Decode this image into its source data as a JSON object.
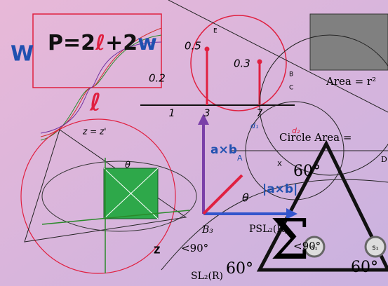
{
  "formula": {
    "w_big": "W",
    "parts": [
      "P=2",
      "ℓ",
      "+2",
      "w"
    ],
    "ell": "ℓ"
  },
  "plot": {
    "values": [
      "0.5",
      "0.3",
      "0.2"
    ],
    "axis": [
      "1",
      "3",
      "7"
    ]
  },
  "geometry": {
    "area_square": "Area = r²",
    "circle_area": "Circle Area =",
    "z_eq": "z = z'",
    "theta": "θ",
    "cross": "a×b",
    "cross_abs": "|a×b|",
    "angle60": "60°",
    "angle90": "<90°",
    "psl": "PSL₂(R)",
    "sl": "SL₂(R)",
    "braid": "B₃",
    "sigma": "Σ",
    "node": "s₁",
    "points": [
      "A",
      "B",
      "C",
      "D",
      "E",
      "X",
      "Z"
    ],
    "d1": "d₁",
    "d2": "d₂"
  }
}
